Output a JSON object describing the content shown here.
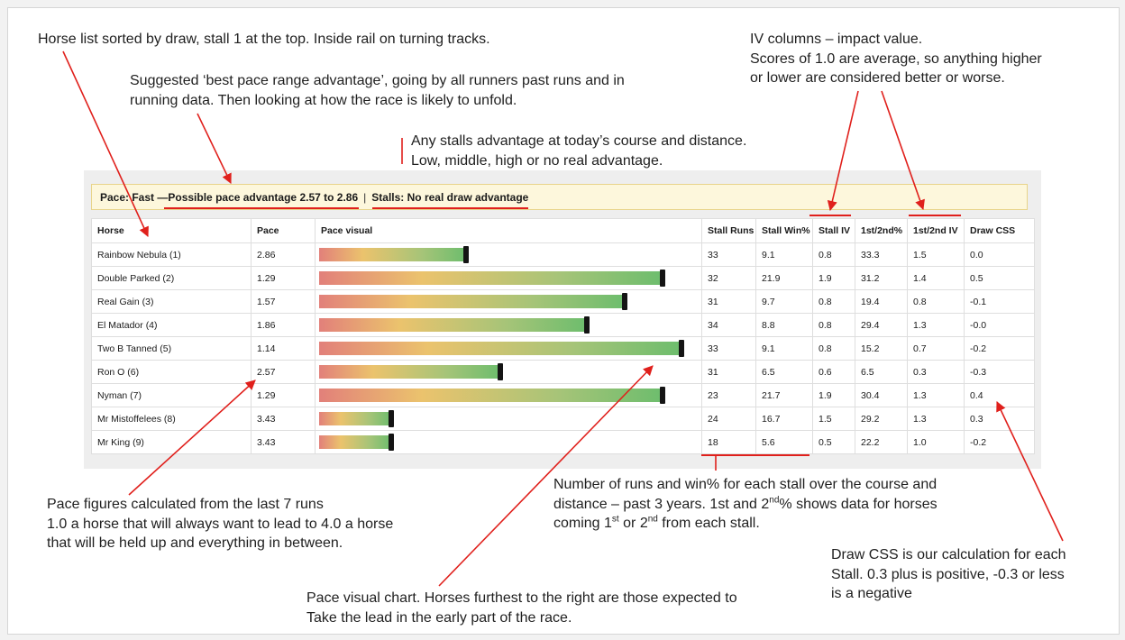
{
  "annotations": {
    "horse_list": [
      "Horse list sorted by draw, stall 1 at the top. Inside rail on turning tracks."
    ],
    "pace_range": [
      "Suggested ‘best pace range advantage’,  going by all runners past runs and in",
      "running data. Then looking at how the race is likely to unfold."
    ],
    "stalls": [
      "Any stalls advantage at today’s course and distance.",
      "Low, middle, high or no real advantage."
    ],
    "iv_columns": [
      "IV columns – impact value.",
      "Scores of 1.0 are average, so anything higher",
      "or lower are considered better or worse."
    ],
    "pace_figures": [
      "Pace figures calculated from the last 7 runs",
      "1.0 a horse that will always want to lead to 4.0 a horse",
      "that will be held up and everything in between."
    ],
    "stall_runs": {
      "line1": "Number of runs and win% for each stall over the course and",
      "line2_a": "distance – past 3 years. 1st and 2",
      "line2_sup": "nd",
      "line2_b": "% shows data for horses",
      "line3_a": "coming 1",
      "line3_sup1": "st",
      "line3_b": " or 2",
      "line3_sup2": "nd",
      "line3_c": " from each stall."
    },
    "draw_css": [
      "Draw CSS is our calculation for each",
      "Stall. 0.3 plus is positive, -0.3 or less",
      "is a negative"
    ],
    "pace_visual": [
      "Pace visual chart. Horses furthest to the right are those expected to",
      "Take the lead in the early part of the race."
    ]
  },
  "banner": {
    "pace_label": "Pace: Fast — ",
    "pace_advantage": "Possible pace advantage 2.57 to 2.86",
    "separator": "|",
    "stalls": "Stalls: No real draw advantage"
  },
  "table": {
    "headers": [
      "Horse",
      "Pace",
      "Pace visual",
      "Stall Runs",
      "Stall Win%",
      "Stall IV",
      "1st/2nd%",
      "1st/2nd IV",
      "Draw CSS"
    ],
    "rows": [
      {
        "horse": "Rainbow Nebula (1)",
        "pace": "2.86",
        "bar": 0.39,
        "stall_runs": "33",
        "stall_win": "9.1",
        "stall_iv": "0.8",
        "first_second": "33.3",
        "first_second_iv": "1.5",
        "draw_css": "0.0"
      },
      {
        "horse": "Double Parked (2)",
        "pace": "1.29",
        "bar": 0.91,
        "stall_runs": "32",
        "stall_win": "21.9",
        "stall_iv": "1.9",
        "first_second": "31.2",
        "first_second_iv": "1.4",
        "draw_css": "0.5"
      },
      {
        "horse": "Real Gain (3)",
        "pace": "1.57",
        "bar": 0.81,
        "stall_runs": "31",
        "stall_win": "9.7",
        "stall_iv": "0.8",
        "first_second": "19.4",
        "first_second_iv": "0.8",
        "draw_css": "-0.1"
      },
      {
        "horse": "El Matador (4)",
        "pace": "1.86",
        "bar": 0.71,
        "stall_runs": "34",
        "stall_win": "8.8",
        "stall_iv": "0.8",
        "first_second": "29.4",
        "first_second_iv": "1.3",
        "draw_css": "-0.0"
      },
      {
        "horse": "Two B Tanned (5)",
        "pace": "1.14",
        "bar": 0.96,
        "stall_runs": "33",
        "stall_win": "9.1",
        "stall_iv": "0.8",
        "first_second": "15.2",
        "first_second_iv": "0.7",
        "draw_css": "-0.2"
      },
      {
        "horse": "Ron O (6)",
        "pace": "2.57",
        "bar": 0.48,
        "stall_runs": "31",
        "stall_win": "6.5",
        "stall_iv": "0.6",
        "first_second": "6.5",
        "first_second_iv": "0.3",
        "draw_css": "-0.3"
      },
      {
        "horse": "Nyman (7)",
        "pace": "1.29",
        "bar": 0.91,
        "stall_runs": "23",
        "stall_win": "21.7",
        "stall_iv": "1.9",
        "first_second": "30.4",
        "first_second_iv": "1.3",
        "draw_css": "0.4"
      },
      {
        "horse": "Mr Mistoffelees (8)",
        "pace": "3.43",
        "bar": 0.19,
        "stall_runs": "24",
        "stall_win": "16.7",
        "stall_iv": "1.5",
        "first_second": "29.2",
        "first_second_iv": "1.3",
        "draw_css": "0.3"
      },
      {
        "horse": "Mr King (9)",
        "pace": "3.43",
        "bar": 0.19,
        "stall_runs": "18",
        "stall_win": "5.6",
        "stall_iv": "0.5",
        "first_second": "22.2",
        "first_second_iv": "1.0",
        "draw_css": "-0.2"
      }
    ]
  },
  "colors": {
    "annotation_arrow": "#e0201c",
    "banner_bg": "#fdf7dc",
    "banner_border": "#e8d48a",
    "bar_start": "#e2807a",
    "bar_mid": "#ebc36d",
    "bar_end": "#6dbd6d",
    "bar_marker": "#141414"
  }
}
